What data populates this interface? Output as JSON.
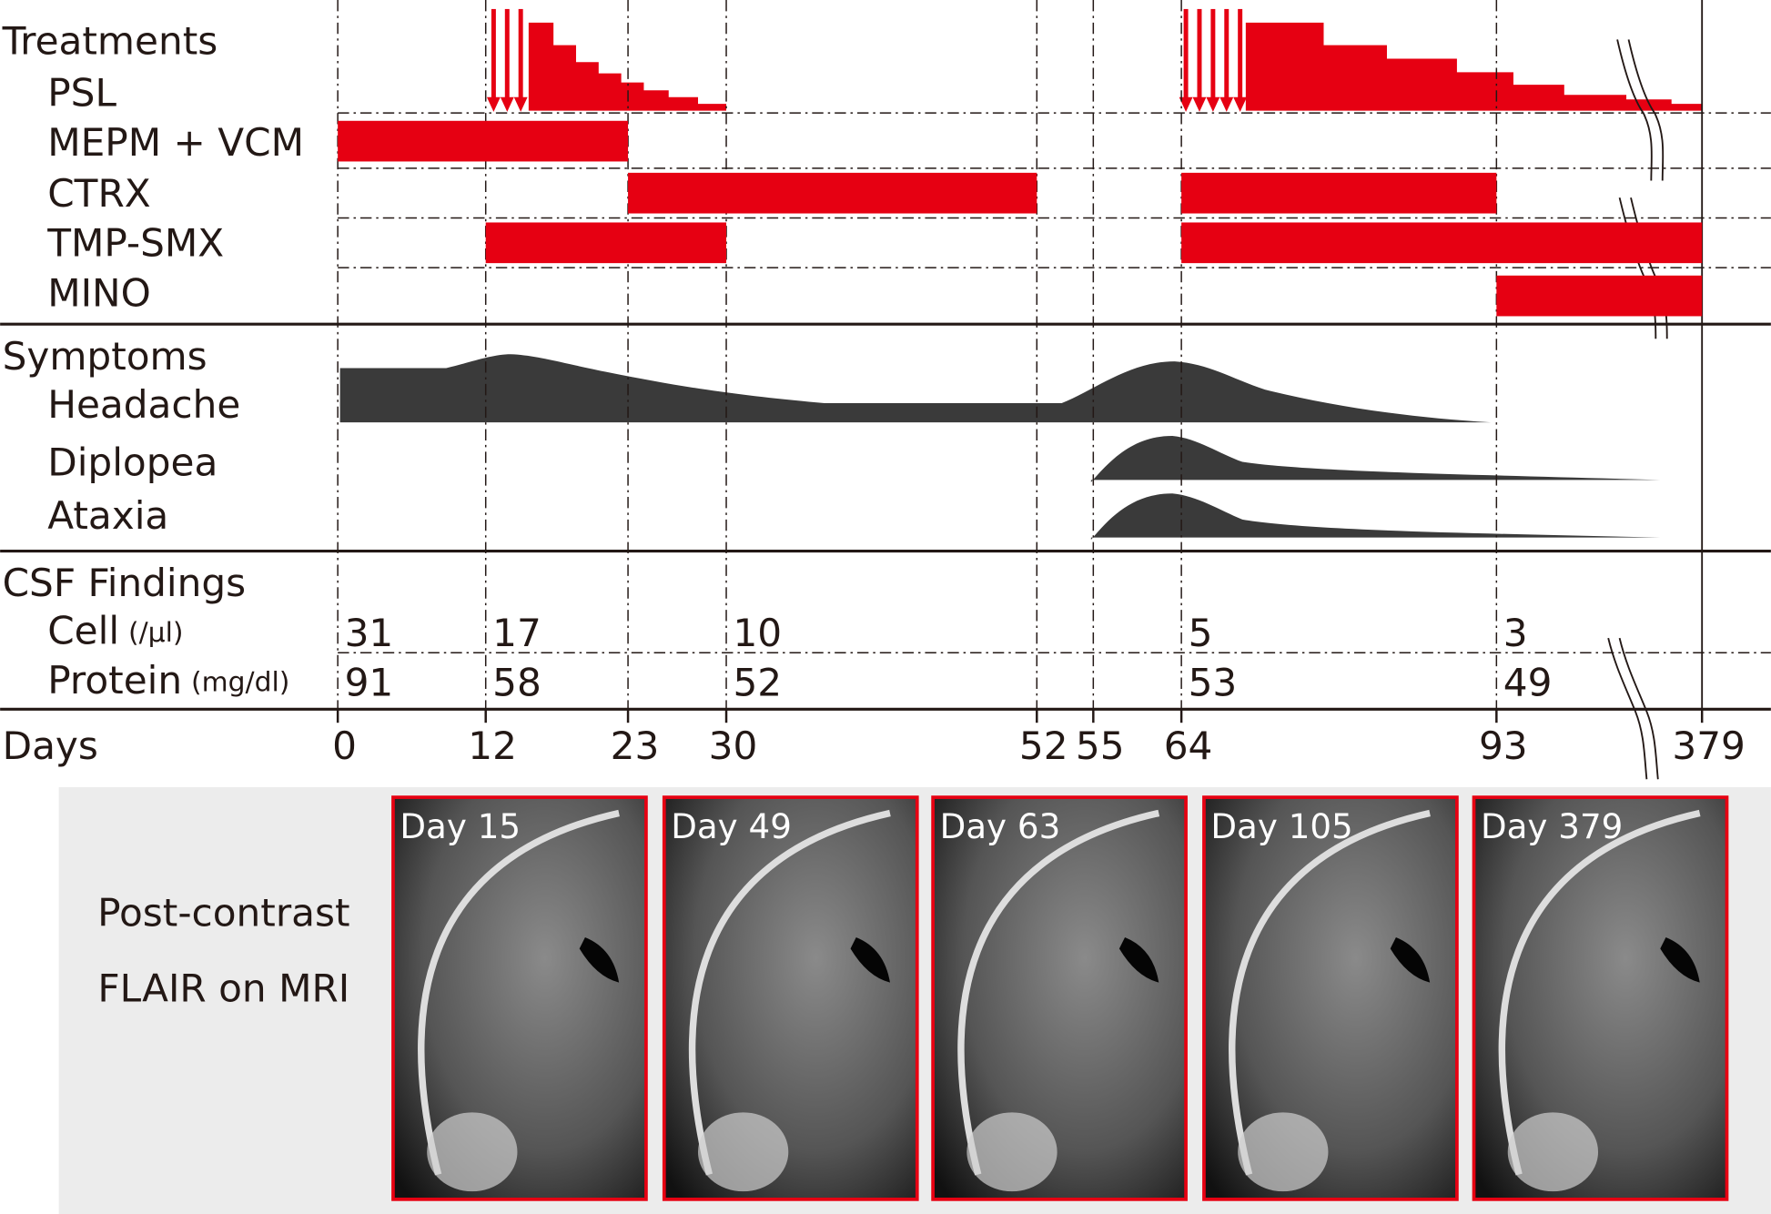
{
  "treatments": {
    "title": "Treatments",
    "rows": [
      {
        "label": "PSL"
      },
      {
        "label": "MEPM + VCM",
        "periods": [
          [
            0,
            23
          ]
        ]
      },
      {
        "label": "CTRX",
        "periods": [
          [
            23,
            52
          ],
          [
            64,
            93
          ]
        ]
      },
      {
        "label": "TMP-SMX",
        "periods": [
          [
            12,
            30
          ],
          [
            64,
            379
          ]
        ]
      },
      {
        "label": "MINO",
        "periods": [
          [
            93,
            379
          ]
        ]
      }
    ]
  },
  "symptoms": {
    "title": "Symptoms",
    "rows": [
      "Headache",
      "Diplopea",
      "Ataxia"
    ]
  },
  "csf": {
    "title": "CSF Findings",
    "days": [
      0,
      12,
      30,
      64,
      93
    ],
    "rows": [
      {
        "label": "Cell",
        "unit": "(/μl)",
        "values": [
          31,
          17,
          10,
          5,
          3
        ]
      },
      {
        "label": "Protein",
        "unit": "(mg/dl)",
        "values": [
          91,
          58,
          52,
          53,
          49
        ]
      }
    ]
  },
  "days": {
    "label": "Days",
    "ticks": [
      0,
      12,
      23,
      30,
      52,
      55,
      64,
      93,
      379
    ]
  },
  "mri": {
    "label": [
      "Post-contrast",
      "FLAIR on MRI"
    ],
    "images": [
      "Day 15",
      "Day 49",
      "Day 63",
      "Day 105",
      "Day 379"
    ]
  }
}
